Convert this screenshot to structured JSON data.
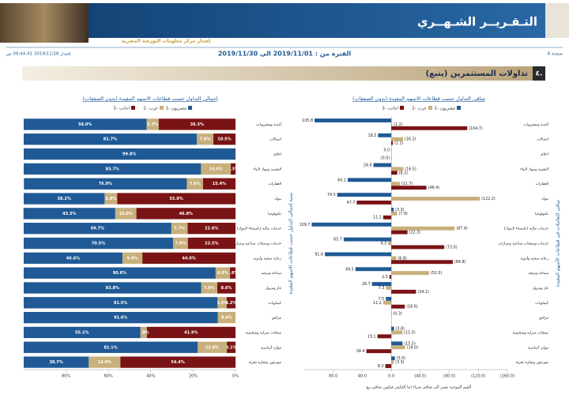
{
  "header": {
    "title": "التـقـريــر الشـهــري",
    "subtitle": "إصدار مركز معلومات البورصة المصرية",
    "page": "صفحة 6",
    "issued": "إصدار 2019/11/28 09:44:41 ص"
  },
  "period": "الفترة من : 2019/11/01 الى 2019/11/30",
  "section": {
    "number": "٤.",
    "title": "تداولات المستثمرين (يتبع)"
  },
  "chart_data": [
    {
      "type": "stacked_bar",
      "orientation": "horizontal",
      "title": "إجمالي التداول حسب قطاعات الاسهم المقيدة (بدون الصفقات)",
      "ylabel": "نسبة إجمالي التداول حسب قطاعات الاسهم المقيدة",
      "categories": [
        "أغذية ومشروبات",
        "اتصالات",
        "اعلام",
        "التشييد ومواد البناء",
        "العقارات",
        "بنوك",
        "تكنولوجيا",
        "خدمات مالية (باستثناء البنوك)",
        "خدمات ومنتجات صناعية وسيارات",
        "رعاية صحية وأدوية",
        "سياحة وترفيه",
        "غاز وبترول",
        "كيماويات",
        "مرافق",
        "منتجات منزلية وشخصية",
        "موارد أساسية",
        "موزعون وتجارة تجزئة"
      ],
      "series": [
        {
          "name": "1- مصريون",
          "color": "#1f5a96",
          "values": [
            58.0,
            81.7,
            99.8,
            83.7,
            76.9,
            38.2,
            43.3,
            69.7,
            70.5,
            46.6,
            90.6,
            83.8,
            91.5,
            91.6,
            55.1,
            82.1,
            30.7
          ],
          "value_labels": [
            "58.0%",
            "81.7%",
            "99.8%",
            "83.7%",
            "76.9%",
            "38.2%",
            "43.3%",
            "69.7%",
            "70.5%",
            "46.6%",
            "90.6%",
            "83.8%",
            "91.5%",
            "91.6%",
            "55.1%",
            "82.1%",
            "30.7%"
          ]
        },
        {
          "name": "2- عرب",
          "color": "#c8b07c",
          "values": [
            5.7,
            7.8,
            0.0,
            14.0,
            7.6,
            5.9,
            10.0,
            7.7,
            7.0,
            9.4,
            6.8,
            7.6,
            4.3,
            8.4,
            3.0,
            13.8,
            14.9
          ],
          "value_labels": [
            "5.7%",
            "7.8%",
            null,
            "14.0%",
            "7.6%",
            "5.9%",
            "10.0%",
            "7.7%",
            "7.0%",
            "9.4%",
            "6.8%",
            "7.6%",
            "4.3%",
            "8.4%",
            "3.0%",
            "13.8%",
            "14.9%"
          ]
        },
        {
          "name": "3- اجانب",
          "color": "#7a1315",
          "values": [
            36.3,
            10.5,
            0.2,
            2.3,
            15.4,
            55.9,
            46.8,
            22.6,
            22.5,
            44.0,
            2.6,
            8.6,
            4.2,
            0.0,
            41.9,
            4.1,
            54.4
          ],
          "value_labels": [
            "36.3%",
            "10.5%",
            null,
            "2.3%",
            "15.4%",
            "55.9%",
            "46.8%",
            "22.6%",
            "22.5%",
            "44.0%",
            "2.6%",
            "8.6%",
            "4.2%",
            null,
            "41.9%",
            "4.1%",
            "54.4%"
          ]
        }
      ],
      "xlim": [
        100,
        0
      ],
      "xticks": [
        {
          "value": 80,
          "label": "80%"
        },
        {
          "value": 60,
          "label": "60%"
        },
        {
          "value": 40,
          "label": "40%"
        },
        {
          "value": 20,
          "label": "20%"
        },
        {
          "value": 0,
          "label": "0%"
        }
      ]
    },
    {
      "type": "bar",
      "orientation": "horizontal",
      "title": "صافي التداول حسب قطاعات الاسهم المقيدة (بدون الصفقات)",
      "ylabel": "صافي التعاملات في قطاعات الأسهم المقيدة",
      "note": "القيم الموجبة تشير الى صافي شراء اما العكس فيكون صافي بيع",
      "categories": [
        "أغذية ومشروبات",
        "اتصالات",
        "اعلام",
        "التشييد ومواد البناء",
        "العقارات",
        "بنوك",
        "تكنولوجيا",
        "خدمات مالية (باستثناء البنوك)",
        "خدمات ومنتجات صناعية وسيارات",
        "رعاية صحية وأدوية",
        "سياحة وترفيه",
        "غاز وبترول",
        "كيماويات",
        "مرافق",
        "منتجات منزلية وشخصية",
        "موارد أساسية",
        "موزعون وتجارة تجزئة"
      ],
      "series": [
        {
          "name": "1- مصريون",
          "color": "#1f5a96",
          "values": [
            105.8,
            18.3,
            0.0,
            24.6,
            60.1,
            74.5,
            -3.3,
            109.7,
            65.7,
            91.6,
            49.5,
            26.7,
            7.5,
            -0.3,
            -3.8,
            -15.5,
            -5.0
          ],
          "value_labels": [
            "105.8",
            "18.3",
            "0.0",
            "24.6",
            "60.1",
            "74.5",
            "(3.3)",
            "109.7",
            "65.7",
            "91.6",
            "49.5",
            "26.7",
            "7.5",
            "(0.3)",
            "(3.8)",
            "(15.5)",
            "(5.0)"
          ]
        },
        {
          "name": "2- عرب",
          "color": "#c8b07c",
          "values": [
            -1.2,
            -16.2,
            null,
            -16.5,
            -11.7,
            -122.2,
            -7.9,
            -87.4,
            4.3,
            -6.8,
            -52.0,
            7.3,
            11.2,
            null,
            -15.3,
            -19.0,
            -3.3
          ],
          "value_labels": [
            "(1.2)",
            "(16.2)",
            null,
            "(16.5)",
            "(11.7)",
            "(122.2)",
            "(7.9)",
            "(87.4)",
            "4.3",
            "(6.8)",
            "(52.0)",
            "7.3",
            "11.2",
            null,
            "(15.3)",
            "(19.0)",
            "(3.3)"
          ]
        },
        {
          "name": "3- اجانب",
          "color": "#7a1315",
          "values": [
            -104.7,
            -2.1,
            0,
            -8.2,
            -48.4,
            47.7,
            11.2,
            -22.3,
            -73.0,
            -84.8,
            2.5,
            -34.1,
            -18.6,
            null,
            19.1,
            34.4,
            8.3
          ],
          "value_labels": [
            "(104.7)",
            "(2.1)",
            "(0.0)",
            "(8.2)",
            "(48.4)",
            "47.7",
            "11.2",
            "(22.3)",
            "(73.0)",
            "(84.8)",
            "2.5",
            "(34.1)",
            "(18.6)",
            null,
            "19.1",
            "34.4",
            "8.3"
          ]
        }
      ],
      "xlim": [
        120,
        -160
      ],
      "xticks": [
        {
          "value": 80,
          "label": "80.0"
        },
        {
          "value": 40,
          "label": "40.0"
        },
        {
          "value": 0,
          "label": "0.0"
        },
        {
          "value": -40,
          "label": "(40.0)"
        },
        {
          "value": -80,
          "label": "(80.0)"
        },
        {
          "value": -120,
          "label": "(120.0)"
        },
        {
          "value": -160,
          "label": "(160.0)"
        }
      ]
    }
  ]
}
